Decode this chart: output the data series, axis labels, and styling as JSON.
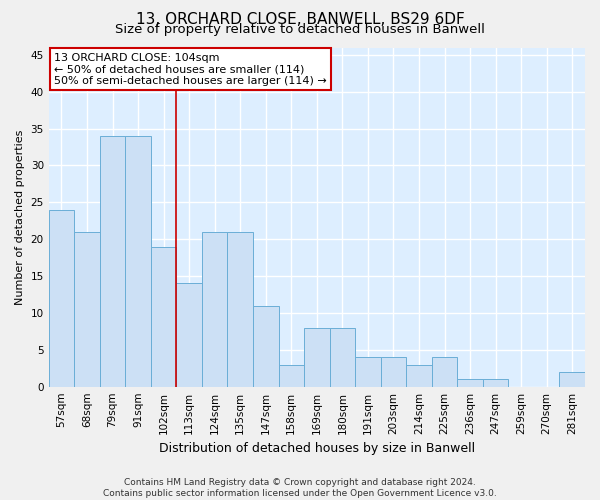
{
  "title": "13, ORCHARD CLOSE, BANWELL, BS29 6DF",
  "subtitle": "Size of property relative to detached houses in Banwell",
  "xlabel": "Distribution of detached houses by size in Banwell",
  "ylabel": "Number of detached properties",
  "categories": [
    "57sqm",
    "68sqm",
    "79sqm",
    "91sqm",
    "102sqm",
    "113sqm",
    "124sqm",
    "135sqm",
    "147sqm",
    "158sqm",
    "169sqm",
    "180sqm",
    "191sqm",
    "203sqm",
    "214sqm",
    "225sqm",
    "236sqm",
    "247sqm",
    "259sqm",
    "270sqm",
    "281sqm"
  ],
  "values": [
    24,
    21,
    34,
    34,
    19,
    14,
    21,
    21,
    11,
    3,
    8,
    8,
    4,
    4,
    3,
    4,
    1,
    1,
    0,
    0,
    2
  ],
  "bar_color": "#cce0f5",
  "bar_edge_color": "#6aaed6",
  "background_color": "#ddeeff",
  "fig_background_color": "#f0f0f0",
  "grid_color": "#ffffff",
  "annotation_text": "13 ORCHARD CLOSE: 104sqm\n← 50% of detached houses are smaller (114)\n50% of semi-detached houses are larger (114) →",
  "annotation_box_color": "#ffffff",
  "annotation_box_edge_color": "#cc0000",
  "vline_x_index": 4,
  "vline_color": "#cc0000",
  "ylim": [
    0,
    46
  ],
  "yticks": [
    0,
    5,
    10,
    15,
    20,
    25,
    30,
    35,
    40,
    45
  ],
  "footer_line1": "Contains HM Land Registry data © Crown copyright and database right 2024.",
  "footer_line2": "Contains public sector information licensed under the Open Government Licence v3.0.",
  "title_fontsize": 11,
  "subtitle_fontsize": 9.5,
  "xlabel_fontsize": 9,
  "ylabel_fontsize": 8,
  "tick_fontsize": 7.5,
  "annotation_fontsize": 8,
  "footer_fontsize": 6.5
}
